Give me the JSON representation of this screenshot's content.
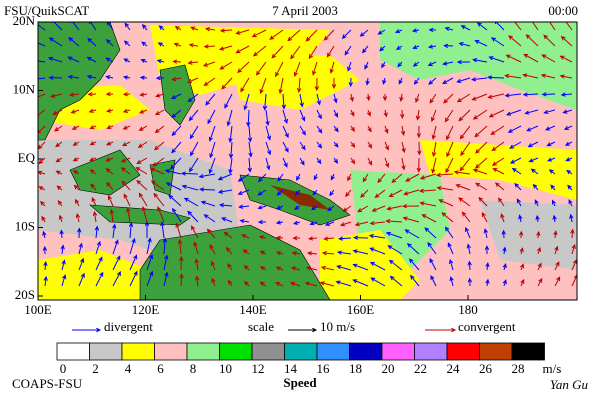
{
  "header": {
    "left": "FSU/QuikSCAT",
    "center": "7 April 2003",
    "right": "00:00"
  },
  "map": {
    "lon_ticks": [
      "100E",
      "120E",
      "140E",
      "160E",
      "180"
    ],
    "lat_ticks": [
      "20N",
      "10N",
      "EQ",
      "10S",
      "20S"
    ]
  },
  "legend": {
    "divergent": "divergent",
    "divergent_color": "#0000ff",
    "scale": "scale",
    "scale_value": "10 m/s",
    "convergent": "convergent",
    "convergent_color": "#c00000"
  },
  "colorbar": {
    "labels": [
      0,
      2,
      4,
      6,
      8,
      10,
      12,
      14,
      16,
      18,
      20,
      22,
      24,
      26,
      28
    ],
    "unit": "m/s",
    "title": "Speed",
    "colors": [
      "#ffffff",
      "#c8c8c8",
      "#ffff00",
      "#ffc0c0",
      "#90f090",
      "#00e000",
      "#909090",
      "#00b0b0",
      "#3090ff",
      "#0000c0",
      "#ff60ff",
      "#b080ff",
      "#ff0000",
      "#c04000",
      "#000000"
    ]
  },
  "footer": {
    "left": "COAPS-FSU",
    "right": "Yan Gu"
  }
}
